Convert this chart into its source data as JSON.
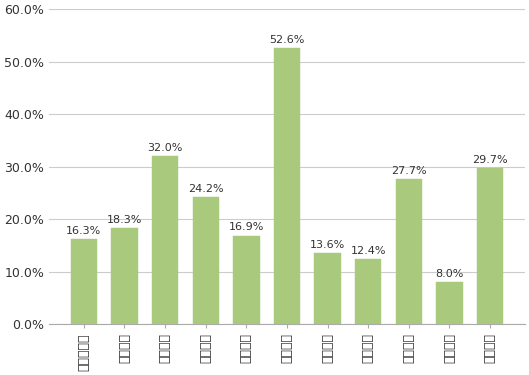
{
  "categories": [
    "北海道電力",
    "東北電力",
    "東京電力",
    "中部電力",
    "北陸電力",
    "関西電力",
    "中国電力",
    "四国電力",
    "九州電力",
    "沖縄電力",
    "全国平均"
  ],
  "values": [
    16.3,
    18.3,
    32.0,
    24.2,
    16.9,
    52.6,
    13.6,
    12.4,
    27.7,
    8.0,
    29.7
  ],
  "bar_color": "#a9c97d",
  "bar_edge_color": "#a9c97d",
  "ylim": [
    0,
    60
  ],
  "yticks": [
    0,
    10,
    20,
    30,
    40,
    50,
    60
  ],
  "ytick_labels": [
    "0.0%",
    "10.0%",
    "20.0%",
    "30.0%",
    "40.0%",
    "50.0%",
    "60.0%"
  ],
  "grid_color": "#cccccc",
  "background_color": "#ffffff",
  "tick_fontsize": 9,
  "value_fontsize": 8,
  "xticklabel_fontsize": 9
}
